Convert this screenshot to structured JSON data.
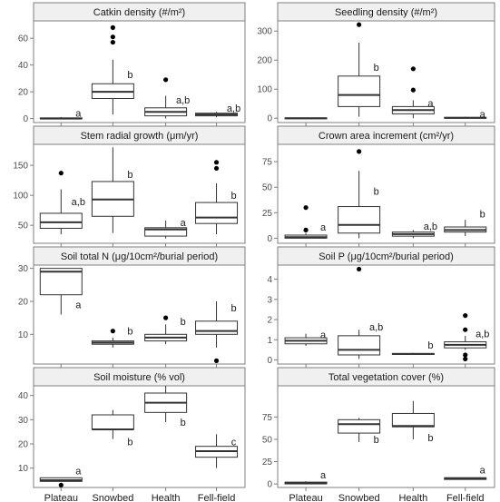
{
  "chart_data": {
    "type": "box",
    "categories": [
      "Plateau",
      "Snowbed",
      "Health",
      "Fell-field"
    ],
    "panels": [
      {
        "title": "Catkin density (#/m²)",
        "ylim": [
          -3,
          73
        ],
        "yticks": [
          0,
          20,
          40,
          60
        ],
        "boxes": [
          {
            "q1": 0,
            "median": 0,
            "q3": 0.5,
            "lo": 0,
            "hi": 1,
            "outliers": [],
            "letter": "a",
            "letter_y": 4
          },
          {
            "q1": 15,
            "median": 20,
            "q3": 26,
            "lo": 3,
            "hi": 44,
            "outliers": [
              57,
              61,
              68
            ],
            "letter": "b",
            "letter_y": 33
          },
          {
            "q1": 2,
            "median": 5,
            "q3": 8,
            "lo": 0,
            "hi": 17,
            "outliers": [
              29
            ],
            "letter": "a,b",
            "letter_y": 14
          },
          {
            "q1": 2,
            "median": 3,
            "q3": 4,
            "lo": 1,
            "hi": 5,
            "outliers": [],
            "letter": "a,b",
            "letter_y": 8
          }
        ]
      },
      {
        "title": "Seedling density (#/m²)",
        "ylim": [
          -15,
          335
        ],
        "yticks": [
          0,
          100,
          200,
          300
        ],
        "boxes": [
          {
            "q1": 0,
            "median": 0,
            "q3": 1,
            "lo": 0,
            "hi": 2,
            "outliers": [],
            "letter": "",
            "letter_y": 0
          },
          {
            "q1": 40,
            "median": 80,
            "q3": 145,
            "lo": 5,
            "hi": 260,
            "outliers": [
              322
            ],
            "letter": "b",
            "letter_y": 175
          },
          {
            "q1": 15,
            "median": 28,
            "q3": 40,
            "lo": 0,
            "hi": 62,
            "outliers": [
              97,
              170
            ],
            "letter": "a",
            "letter_y": 52
          },
          {
            "q1": 0,
            "median": 1,
            "q3": 3,
            "lo": 0,
            "hi": 5,
            "outliers": [],
            "letter": "a",
            "letter_y": 15
          }
        ]
      },
      {
        "title": "Stem radial growth  (μm/yr)",
        "ylim": [
          20,
          185
        ],
        "yticks": [
          50,
          100,
          150
        ],
        "boxes": [
          {
            "q1": 45,
            "median": 55,
            "q3": 70,
            "lo": 35,
            "hi": 110,
            "outliers": [
              137
            ],
            "letter": "a,b",
            "letter_y": 90
          },
          {
            "q1": 65,
            "median": 93,
            "q3": 123,
            "lo": 37,
            "hi": 180,
            "outliers": [],
            "letter": "b",
            "letter_y": 135
          },
          {
            "q1": 32,
            "median": 43,
            "q3": 46,
            "lo": 28,
            "hi": 58,
            "outliers": [],
            "letter": "a",
            "letter_y": 55
          },
          {
            "q1": 53,
            "median": 63,
            "q3": 88,
            "lo": 35,
            "hi": 120,
            "outliers": [
              145,
              155
            ],
            "letter": "b",
            "letter_y": 100
          }
        ]
      },
      {
        "title": "Crown area increment (cm²/yr)",
        "ylim": [
          -5,
          92
        ],
        "yticks": [
          0,
          25,
          50,
          75
        ],
        "boxes": [
          {
            "q1": 0,
            "median": 1,
            "q3": 3,
            "lo": 0,
            "hi": 5,
            "outliers": [
              8,
              30
            ],
            "letter": "a",
            "letter_y": 11
          },
          {
            "q1": 5,
            "median": 13,
            "q3": 31,
            "lo": 0,
            "hi": 66,
            "outliers": [
              85
            ],
            "letter": "b",
            "letter_y": 46
          },
          {
            "q1": 2,
            "median": 4,
            "q3": 6,
            "lo": 0,
            "hi": 8,
            "outliers": [],
            "letter": "a,b",
            "letter_y": 12
          },
          {
            "q1": 6,
            "median": 8,
            "q3": 11,
            "lo": 2,
            "hi": 18,
            "outliers": [],
            "letter": "b",
            "letter_y": 24
          }
        ]
      },
      {
        "title": "Soil total N (μg/10cm²/burial period)",
        "ylim": [
          1,
          31
        ],
        "yticks": [
          10,
          20,
          30
        ],
        "boxes": [
          {
            "q1": 22,
            "median": 29,
            "q3": 30,
            "lo": 16,
            "hi": 30,
            "outliers": [],
            "letter": "a",
            "letter_y": 19
          },
          {
            "q1": 7,
            "median": 7.5,
            "q3": 8,
            "lo": 6,
            "hi": 9,
            "outliers": [
              11
            ],
            "letter": "b",
            "letter_y": 11
          },
          {
            "q1": 8,
            "median": 9,
            "q3": 10,
            "lo": 7,
            "hi": 13,
            "outliers": [
              15
            ],
            "letter": "b",
            "letter_y": 14
          },
          {
            "q1": 10,
            "median": 11,
            "q3": 14,
            "lo": 6,
            "hi": 20,
            "outliers": [
              2
            ],
            "letter": "b",
            "letter_y": 18
          }
        ]
      },
      {
        "title": "Soil P (μg/10cm²/burial period)",
        "ylim": [
          -0.2,
          4.7
        ],
        "yticks": [
          0,
          1,
          2,
          3,
          4
        ],
        "boxes": [
          {
            "q1": 0.8,
            "median": 0.95,
            "q3": 1.1,
            "lo": 0.7,
            "hi": 1.3,
            "outliers": [],
            "letter": "a",
            "letter_y": 1.25
          },
          {
            "q1": 0.25,
            "median": 0.5,
            "q3": 1.2,
            "lo": 0.05,
            "hi": 1.5,
            "outliers": [
              4.5
            ],
            "letter": "a,b",
            "letter_y": 1.65
          },
          {
            "q1": 0.28,
            "median": 0.3,
            "q3": 0.32,
            "lo": 0.25,
            "hi": 0.35,
            "outliers": [],
            "letter": "b",
            "letter_y": 0.75
          },
          {
            "q1": 0.6,
            "median": 0.75,
            "q3": 0.9,
            "lo": 0.5,
            "hi": 1.2,
            "outliers": [
              0.05,
              0.25,
              1.5,
              2.2
            ],
            "letter": "a,b",
            "letter_y": 1.3
          }
        ]
      },
      {
        "title": "Soil moisture (% vol)",
        "ylim": [
          2,
          44
        ],
        "yticks": [
          10,
          20,
          30,
          40
        ],
        "boxes": [
          {
            "q1": 4.5,
            "median": 5,
            "q3": 6,
            "lo": 4.5,
            "hi": 6,
            "outliers": [
              3
            ],
            "letter": "a",
            "letter_y": 9
          },
          {
            "q1": 26,
            "median": 26,
            "q3": 32,
            "lo": 22,
            "hi": 34,
            "outliers": [],
            "letter": "b",
            "letter_y": 21
          },
          {
            "q1": 33,
            "median": 37,
            "q3": 41,
            "lo": 29,
            "hi": 44,
            "outliers": [],
            "letter": "b",
            "letter_y": 29
          },
          {
            "q1": 14.5,
            "median": 17,
            "q3": 19,
            "lo": 10,
            "hi": 24,
            "outliers": [],
            "letter": "c",
            "letter_y": 21
          }
        ]
      },
      {
        "title": "Total vegetation cover (%)",
        "ylim": [
          -4,
          110
        ],
        "yticks": [
          0,
          25,
          50,
          75
        ],
        "boxes": [
          {
            "q1": 0,
            "median": 1,
            "q3": 2,
            "lo": 0,
            "hi": 3,
            "outliers": [],
            "letter": "a",
            "letter_y": 10
          },
          {
            "q1": 57,
            "median": 67,
            "q3": 72,
            "lo": 47,
            "hi": 74,
            "outliers": [],
            "letter": "b",
            "letter_y": 50
          },
          {
            "q1": 64,
            "median": 65,
            "q3": 79,
            "lo": 50,
            "hi": 93,
            "outliers": [],
            "letter": "b",
            "letter_y": 52
          },
          {
            "q1": 5,
            "median": 6,
            "q3": 7,
            "lo": 5,
            "hi": 7,
            "outliers": [],
            "letter": "a",
            "letter_y": 16
          }
        ]
      }
    ]
  }
}
